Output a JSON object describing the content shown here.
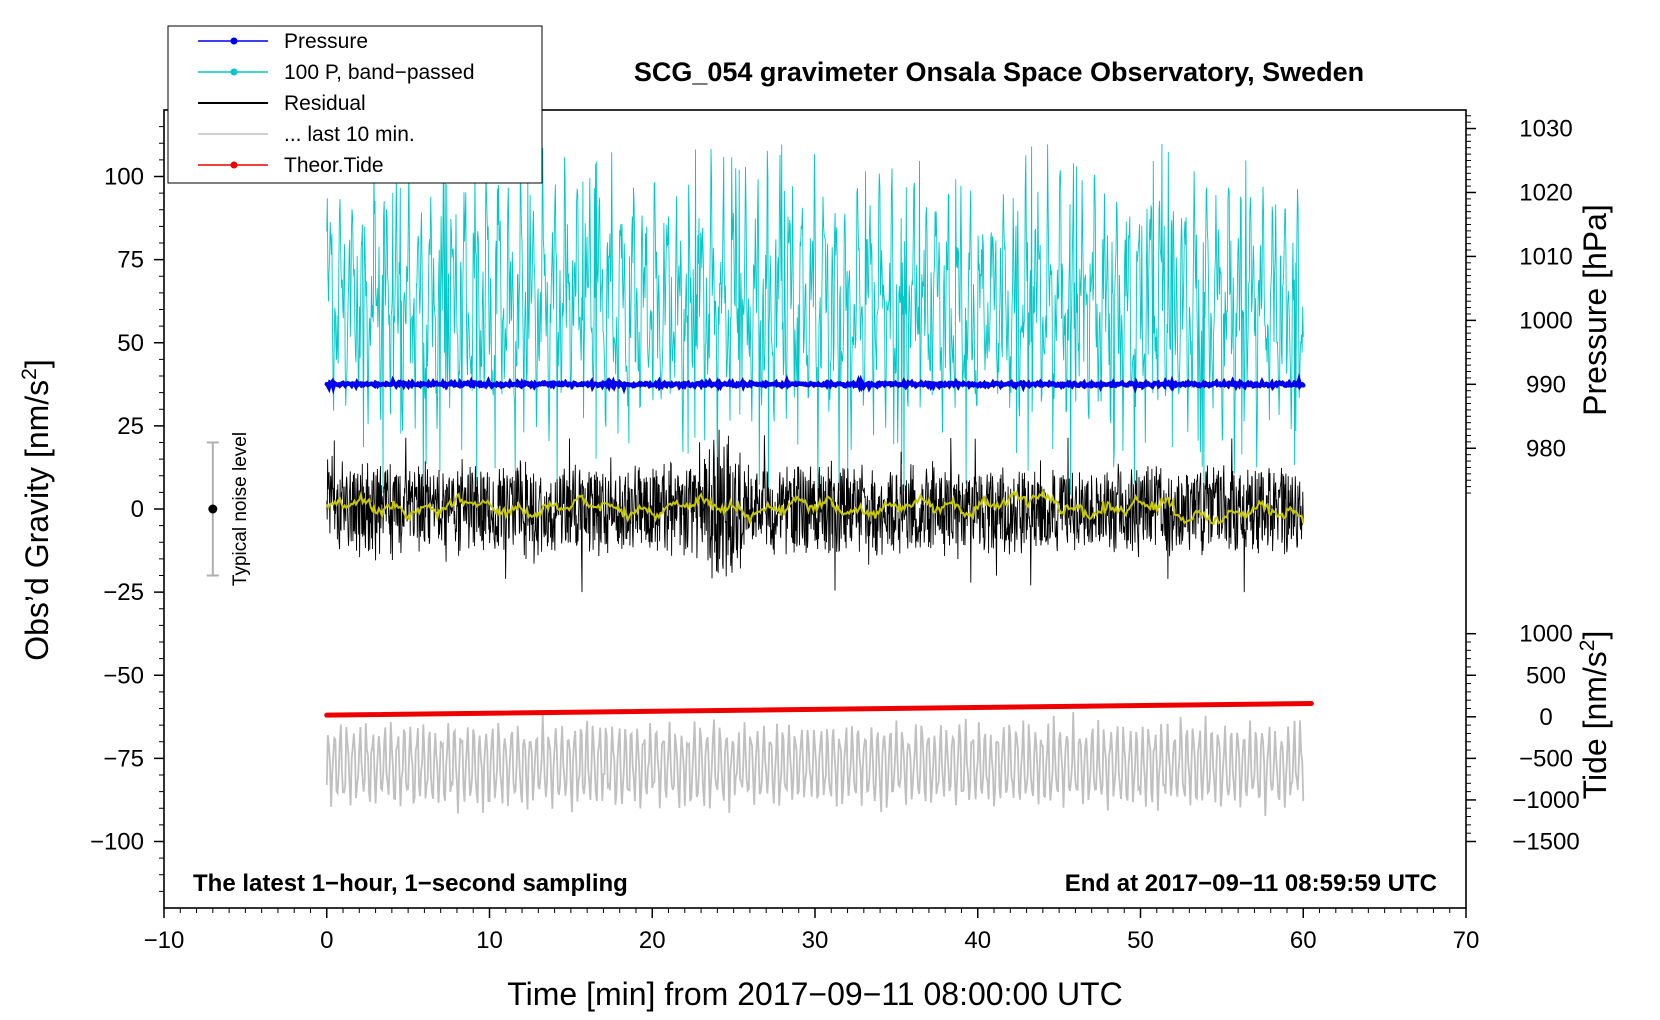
{
  "chart_data": {
    "type": "line",
    "title": "SCG_054 gravimeter Onsala Space Observatory, Sweden",
    "xlabel": "Time [min] from 2017−09−11 08:00:00 UTC",
    "ylabel_left": "Obs’d Gravity [nm/s",
    "ylabel_left_sup": "2",
    "ylabel_left_end": "]",
    "ylabel_right_pressure": "Pressure [hPa]",
    "ylabel_right_tide": "Tide [nm/s",
    "ylabel_right_tide_sup": "2",
    "ylabel_right_tide_end": "]",
    "xlim": [
      -10,
      70
    ],
    "ylim": [
      -120,
      120
    ],
    "x_ticks": [
      -10,
      0,
      10,
      20,
      30,
      40,
      50,
      60,
      70
    ],
    "x_tick_labels": [
      "−10",
      "0",
      "10",
      "20",
      "30",
      "40",
      "50",
      "60",
      "70"
    ],
    "y_ticks": [
      100,
      75,
      50,
      25,
      0,
      -25,
      -50,
      -75,
      -100
    ],
    "y_tick_labels": [
      "100",
      "75",
      "50",
      "25",
      "0",
      "−25",
      "−50",
      "−75",
      "−100"
    ],
    "pressure_axis": {
      "ticks": [
        1030,
        1020,
        1010,
        1000,
        990,
        980
      ],
      "tick_labels": [
        "1030",
        "1020",
        "1010",
        "1000",
        "990",
        "980"
      ],
      "value_at_gravity_0": 970.5,
      "hpa_per_nm_s2": 0.52
    },
    "tide_axis": {
      "ticks": [
        1000,
        500,
        0,
        -500,
        -1000,
        -1500
      ],
      "tick_labels": [
        "1000",
        "500",
        "0",
        "−500",
        "−1000",
        "−1500"
      ],
      "value_at_gravity_0": 2500,
      "tide_per_nm_s2": 40
    },
    "series": [
      {
        "name": "Pressure",
        "color": "#0000ee",
        "style": "line-dots",
        "x_range": [
          0,
          60
        ],
        "y_gravity": 37.5,
        "pressure_hpa": 990
      },
      {
        "name": "100 P, band−passed",
        "color": "#00c8c8",
        "style": "line-dots",
        "x_range": [
          0,
          60
        ],
        "center": 62,
        "amplitude": 28
      },
      {
        "name": "Residual",
        "color": "#000000",
        "style": "line",
        "x_range": [
          0,
          60
        ],
        "center": 0,
        "amplitude": 11
      },
      {
        "name": "... last 10 min.",
        "color": "#c0c0c0",
        "style": "line",
        "x_range": [
          0,
          60
        ],
        "center": -77,
        "amplitude": 10
      },
      {
        "name": "Theor.Tide",
        "color": "#ee0000",
        "style": "line-dots",
        "x_range": [
          0,
          60.5
        ],
        "y_start": -62,
        "y_end": -58.5
      }
    ],
    "smoothed_residual": {
      "color": "#c8c800",
      "x_range": [
        0,
        60
      ],
      "center": 0.5
    },
    "noise_level": {
      "label": "Typical noise level",
      "x": -7,
      "center": 0,
      "half_range": 20
    },
    "bottom_left_note": "The latest 1−hour, 1−second sampling",
    "bottom_right_note": "End at 2017−09−11 08:59:59 UTC"
  }
}
